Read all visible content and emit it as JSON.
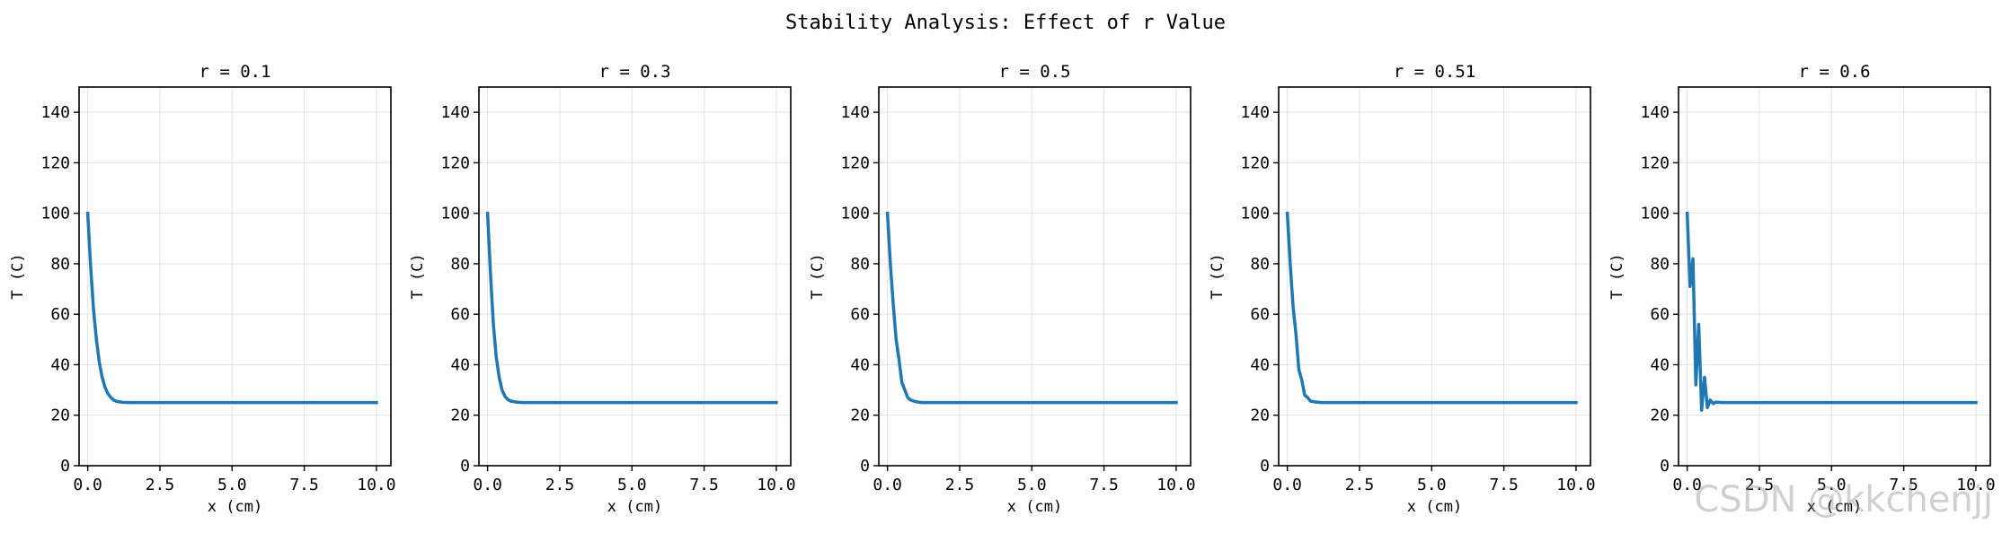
{
  "figure": {
    "suptitle": "Stability Analysis: Effect of r Value",
    "watermark": "CSDN @kkchenjj",
    "line_color": "#1f77b4"
  },
  "chart_data": [
    {
      "type": "line",
      "title": "r = 0.1",
      "xlabel": "x (cm)",
      "ylabel": "T (C)",
      "xlim": [
        -0.3,
        10.5
      ],
      "ylim": [
        0,
        150
      ],
      "xticks": [
        "0.0",
        "2.5",
        "5.0",
        "7.5",
        "10.0"
      ],
      "xtick_values": [
        0,
        2.5,
        5,
        7.5,
        10
      ],
      "yticks": [
        "0",
        "20",
        "40",
        "60",
        "80",
        "100",
        "120",
        "140"
      ],
      "ytick_values": [
        0,
        20,
        40,
        60,
        80,
        100,
        120,
        140
      ],
      "grid": true,
      "series": [
        {
          "name": "T",
          "x": [
            0,
            0.1,
            0.2,
            0.3,
            0.4,
            0.5,
            0.6,
            0.7,
            0.8,
            0.9,
            1.0,
            1.2,
            1.5,
            2.0,
            3.0,
            5.0,
            7.5,
            10.0
          ],
          "y": [
            100,
            79,
            62,
            50,
            41,
            35,
            31,
            28.5,
            27,
            26,
            25.5,
            25.1,
            25,
            25,
            25,
            25,
            25,
            25
          ]
        }
      ]
    },
    {
      "type": "line",
      "title": "r = 0.3",
      "xlabel": "x (cm)",
      "ylabel": "T (C)",
      "xlim": [
        -0.3,
        10.5
      ],
      "ylim": [
        0,
        150
      ],
      "xticks": [
        "0.0",
        "2.5",
        "5.0",
        "7.5",
        "10.0"
      ],
      "xtick_values": [
        0,
        2.5,
        5,
        7.5,
        10
      ],
      "yticks": [
        "0",
        "20",
        "40",
        "60",
        "80",
        "100",
        "120",
        "140"
      ],
      "ytick_values": [
        0,
        20,
        40,
        60,
        80,
        100,
        120,
        140
      ],
      "grid": true,
      "series": [
        {
          "name": "T",
          "x": [
            0,
            0.1,
            0.2,
            0.3,
            0.4,
            0.5,
            0.6,
            0.7,
            0.8,
            1.0,
            1.2,
            1.5,
            2.0,
            3.0,
            5.0,
            7.5,
            10.0
          ],
          "y": [
            100,
            76,
            56,
            43,
            35,
            30,
            27.5,
            26.2,
            25.6,
            25.2,
            25,
            25,
            25,
            25,
            25,
            25,
            25
          ]
        }
      ]
    },
    {
      "type": "line",
      "title": "r = 0.5",
      "xlabel": "x (cm)",
      "ylabel": "T (C)",
      "xlim": [
        -0.3,
        10.5
      ],
      "ylim": [
        0,
        150
      ],
      "xticks": [
        "0.0",
        "2.5",
        "5.0",
        "7.5",
        "10.0"
      ],
      "xtick_values": [
        0,
        2.5,
        5,
        7.5,
        10
      ],
      "yticks": [
        "0",
        "20",
        "40",
        "60",
        "80",
        "100",
        "120",
        "140"
      ],
      "ytick_values": [
        0,
        20,
        40,
        60,
        80,
        100,
        120,
        140
      ],
      "grid": true,
      "series": [
        {
          "name": "T",
          "x": [
            0,
            0.1,
            0.2,
            0.3,
            0.4,
            0.5,
            0.6,
            0.7,
            0.8,
            1.0,
            1.2,
            1.5,
            2.0,
            3.0,
            5.0,
            7.5,
            10.0
          ],
          "y": [
            100,
            80,
            64,
            50,
            42,
            33,
            30,
            27,
            26,
            25.3,
            25,
            25,
            25,
            25,
            25,
            25,
            25
          ]
        }
      ]
    },
    {
      "type": "line",
      "title": "r = 0.51",
      "xlabel": "x (cm)",
      "ylabel": "T (C)",
      "xlim": [
        -0.3,
        10.5
      ],
      "ylim": [
        0,
        150
      ],
      "xticks": [
        "0.0",
        "2.5",
        "5.0",
        "7.5",
        "10.0"
      ],
      "xtick_values": [
        0,
        2.5,
        5,
        7.5,
        10
      ],
      "yticks": [
        "0",
        "20",
        "40",
        "60",
        "80",
        "100",
        "120",
        "140"
      ],
      "ytick_values": [
        0,
        20,
        40,
        60,
        80,
        100,
        120,
        140
      ],
      "grid": true,
      "series": [
        {
          "name": "T",
          "x": [
            0,
            0.1,
            0.2,
            0.3,
            0.4,
            0.5,
            0.6,
            0.7,
            0.8,
            1.0,
            1.2,
            1.5,
            2.0,
            3.0,
            5.0,
            7.5,
            10.0
          ],
          "y": [
            100,
            80,
            63,
            52,
            38,
            34,
            28,
            27,
            25.6,
            25.2,
            25,
            25,
            25,
            25,
            25,
            25,
            25
          ]
        }
      ]
    },
    {
      "type": "line",
      "title": "r = 0.6",
      "xlabel": "x (cm)",
      "ylabel": "T (C)",
      "xlim": [
        -0.3,
        10.5
      ],
      "ylim": [
        0,
        150
      ],
      "xticks": [
        "0.0",
        "2.5",
        "5.0",
        "7.5",
        "10.0"
      ],
      "xtick_values": [
        0,
        2.5,
        5,
        7.5,
        10
      ],
      "yticks": [
        "0",
        "20",
        "40",
        "60",
        "80",
        "100",
        "120",
        "140"
      ],
      "ytick_values": [
        0,
        20,
        40,
        60,
        80,
        100,
        120,
        140
      ],
      "grid": true,
      "series": [
        {
          "name": "T",
          "x": [
            0,
            0.1,
            0.2,
            0.3,
            0.4,
            0.5,
            0.6,
            0.7,
            0.8,
            0.9,
            1.0,
            1.2,
            1.5,
            2.0,
            3.0,
            5.0,
            7.5,
            10.0
          ],
          "y": [
            100,
            71,
            82,
            32,
            56,
            22,
            35,
            23,
            26,
            24.6,
            25.2,
            25,
            25,
            25,
            25,
            25,
            25,
            25
          ]
        }
      ]
    }
  ]
}
